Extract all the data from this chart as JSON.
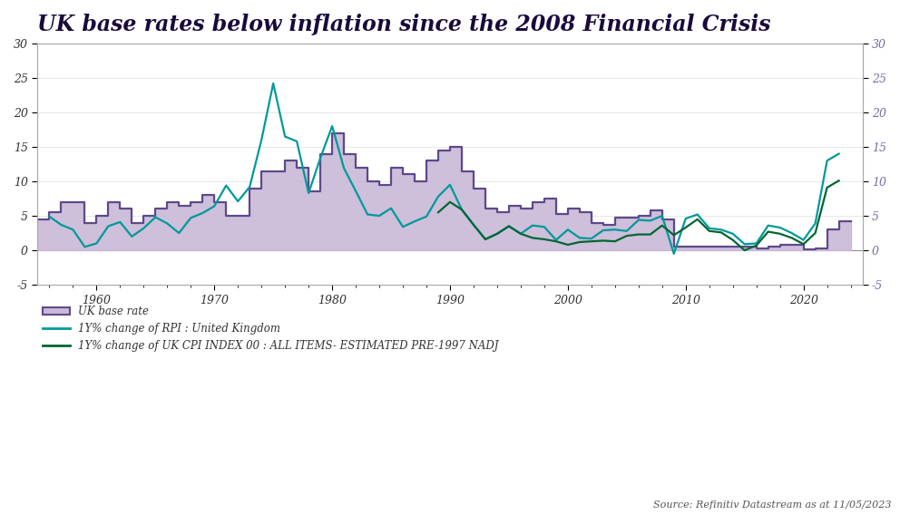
{
  "title": "UK base rates below inflation since the 2008 Financial Crisis",
  "title_color": "#1a0a3c",
  "title_fontsize": 17,
  "background_color": "#ffffff",
  "ylim": [
    -5,
    30
  ],
  "xlim": [
    1955,
    2025
  ],
  "source_text": "Source: Refinitiv Datastream as at 11/05/2023",
  "base_rate_color": "#5c4a8a",
  "base_rate_fill_color": "#c9b8d8",
  "rpi_color": "#009999",
  "cpi_color": "#006633",
  "legend_label_base": "UK base rate",
  "legend_label_rpi": "1Y% change of RPI : United Kingdom",
  "legend_label_cpi": "1Y% change of UK CPI INDEX 00 : ALL ITEMS- ESTIMATED PRE-1997 NADJ",
  "yticks": [
    -5,
    0,
    5,
    10,
    15,
    20,
    25,
    30
  ],
  "xticks": [
    1960,
    1970,
    1980,
    1990,
    2000,
    2010,
    2020
  ],
  "base_rate_years": [
    1955,
    1956,
    1957,
    1958,
    1959,
    1960,
    1961,
    1962,
    1963,
    1964,
    1965,
    1966,
    1967,
    1968,
    1969,
    1970,
    1971,
    1972,
    1973,
    1974,
    1975,
    1976,
    1977,
    1978,
    1979,
    1980,
    1981,
    1982,
    1983,
    1984,
    1985,
    1986,
    1987,
    1988,
    1989,
    1990,
    1991,
    1992,
    1993,
    1994,
    1995,
    1996,
    1997,
    1998,
    1999,
    2000,
    2001,
    2002,
    2003,
    2004,
    2005,
    2006,
    2007,
    2008,
    2009,
    2010,
    2011,
    2012,
    2013,
    2014,
    2015,
    2016,
    2017,
    2018,
    2019,
    2020,
    2021,
    2022,
    2023,
    2024
  ],
  "base_rate_values": [
    4.5,
    5.5,
    7.0,
    7.0,
    4.0,
    5.0,
    7.0,
    6.0,
    4.0,
    5.0,
    6.0,
    7.0,
    6.5,
    7.0,
    8.0,
    7.0,
    5.0,
    5.0,
    9.0,
    11.5,
    11.5,
    13.0,
    12.0,
    8.5,
    14.0,
    17.0,
    14.0,
    12.0,
    10.0,
    9.5,
    12.0,
    11.0,
    10.0,
    13.0,
    14.5,
    15.0,
    11.5,
    9.0,
    6.0,
    5.5,
    6.5,
    6.0,
    7.0,
    7.5,
    5.25,
    6.0,
    5.5,
    4.0,
    3.75,
    4.75,
    4.75,
    5.0,
    5.75,
    4.5,
    0.5,
    0.5,
    0.5,
    0.5,
    0.5,
    0.5,
    0.5,
    0.25,
    0.5,
    0.75,
    0.75,
    0.1,
    0.25,
    3.0,
    4.25,
    4.25
  ],
  "rpi_years": [
    1956,
    1957,
    1958,
    1959,
    1960,
    1961,
    1962,
    1963,
    1964,
    1965,
    1966,
    1967,
    1968,
    1969,
    1970,
    1971,
    1972,
    1973,
    1974,
    1975,
    1976,
    1977,
    1978,
    1979,
    1980,
    1981,
    1982,
    1983,
    1984,
    1985,
    1986,
    1987,
    1988,
    1989,
    1990,
    1991,
    1992,
    1993,
    1994,
    1995,
    1996,
    1997,
    1998,
    1999,
    2000,
    2001,
    2002,
    2003,
    2004,
    2005,
    2006,
    2007,
    2008,
    2009,
    2010,
    2011,
    2012,
    2013,
    2014,
    2015,
    2016,
    2017,
    2018,
    2019,
    2020,
    2021,
    2022,
    2023
  ],
  "rpi_values": [
    4.9,
    3.7,
    3.0,
    0.5,
    1.0,
    3.5,
    4.1,
    2.0,
    3.2,
    4.8,
    3.9,
    2.5,
    4.7,
    5.4,
    6.4,
    9.4,
    7.1,
    9.2,
    16.0,
    24.2,
    16.5,
    15.8,
    8.3,
    13.4,
    18.0,
    11.9,
    8.6,
    5.2,
    5.0,
    6.1,
    3.4,
    4.2,
    4.9,
    7.8,
    9.5,
    5.9,
    3.7,
    1.6,
    2.4,
    3.5,
    2.4,
    3.6,
    3.4,
    1.5,
    3.0,
    1.8,
    1.7,
    2.9,
    3.0,
    2.8,
    4.4,
    4.3,
    5.0,
    -0.5,
    4.6,
    5.2,
    3.2,
    3.0,
    2.4,
    0.9,
    1.0,
    3.6,
    3.3,
    2.5,
    1.5,
    3.9,
    13.0,
    14.0
  ],
  "cpi_years": [
    1989,
    1990,
    1991,
    1992,
    1993,
    1994,
    1995,
    1996,
    1997,
    1998,
    1999,
    2000,
    2001,
    2002,
    2003,
    2004,
    2005,
    2006,
    2007,
    2008,
    2009,
    2010,
    2011,
    2012,
    2013,
    2014,
    2015,
    2016,
    2017,
    2018,
    2019,
    2020,
    2021,
    2022,
    2023
  ],
  "cpi_values": [
    5.5,
    7.0,
    5.9,
    3.7,
    1.6,
    2.4,
    3.5,
    2.4,
    1.8,
    1.6,
    1.3,
    0.8,
    1.2,
    1.3,
    1.4,
    1.3,
    2.1,
    2.3,
    2.3,
    3.6,
    2.2,
    3.3,
    4.5,
    2.8,
    2.6,
    1.5,
    0.0,
    0.7,
    2.7,
    2.4,
    1.8,
    0.9,
    2.5,
    9.1,
    10.1
  ]
}
